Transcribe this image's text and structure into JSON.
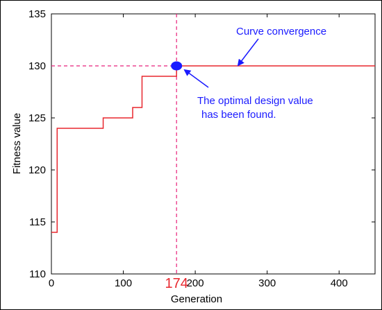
{
  "chart_data": {
    "type": "line",
    "title": "",
    "xlabel": "Generation",
    "ylabel": "Fitness value",
    "xlim": [
      0,
      450
    ],
    "ylim": [
      110,
      135
    ],
    "xticks": [
      0,
      100,
      200,
      300,
      400
    ],
    "yticks": [
      110,
      115,
      120,
      125,
      130,
      135
    ],
    "grid": false,
    "series": [
      {
        "color": "#e8262d",
        "step": true,
        "x": [
          0,
          8,
          10,
          72,
          113,
          126,
          174,
          450
        ],
        "y": [
          114,
          124,
          124,
          125,
          126,
          129,
          130,
          130
        ]
      }
    ],
    "highlight": {
      "x": 174,
      "y": 130,
      "x_label": "174",
      "line_color": "#e8207a",
      "label_color": "#e8262d",
      "marker_color": "#1a1aff"
    },
    "annotations": [
      {
        "text": "Curve convergence",
        "color": "#1a1aff",
        "arrow_to": [
          174,
          130
        ]
      },
      {
        "lines": [
          "The optimal design value",
          "has been found."
        ],
        "color": "#1a1aff",
        "arrow_to": [
          174,
          130
        ]
      }
    ]
  }
}
